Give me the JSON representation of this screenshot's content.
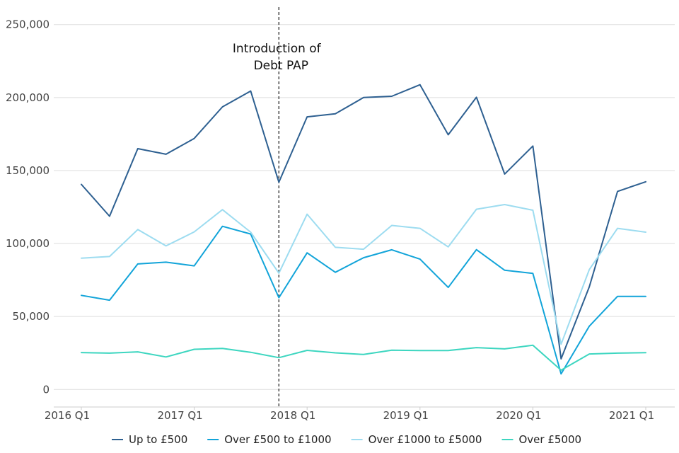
{
  "chart_data": {
    "type": "line",
    "title": "",
    "xlabel": "",
    "ylabel": "",
    "ylim": [
      -12000,
      262000
    ],
    "yticks": [
      0,
      50000,
      100000,
      150000,
      200000,
      250000
    ],
    "ytick_labels": [
      "0",
      "50,000",
      "100,000",
      "150,000",
      "200,000",
      "250,000"
    ],
    "x_tick_index": [
      0,
      4,
      8,
      12,
      16,
      20
    ],
    "x_tick_labels": [
      "2016 Q1",
      "2017 Q1",
      "2018 Q1",
      "2019 Q1",
      "2020 Q1",
      "2021 Q1"
    ],
    "x_count": 21,
    "legend_position": "bottom",
    "grid": true,
    "annotation": {
      "at_index": 7,
      "line1": "Introduction of",
      "line2": "Debt PAP"
    },
    "series": [
      {
        "name": "Up to £500",
        "color": "#2e6091",
        "values": [
          140500,
          118700,
          165000,
          161200,
          172000,
          193600,
          204500,
          142000,
          186800,
          188900,
          200000,
          200900,
          208800,
          174500,
          200200,
          147600,
          166800,
          21000,
          70400,
          135700,
          142300
        ]
      },
      {
        "name": "Over £500 to £1000",
        "color": "#12a4d9",
        "values": [
          64500,
          61200,
          86000,
          87200,
          84700,
          111800,
          106500,
          62900,
          93600,
          80300,
          90300,
          95700,
          89300,
          69900,
          95800,
          81700,
          79500,
          10700,
          43400,
          63800,
          63800
        ]
      },
      {
        "name": "Over £1000 to £5000",
        "color": "#9ddcf0",
        "values": [
          90000,
          91100,
          109600,
          98400,
          108000,
          123200,
          107800,
          79700,
          120100,
          97400,
          96100,
          112400,
          110400,
          97700,
          123500,
          126700,
          122800,
          31000,
          82200,
          110400,
          107800
        ]
      },
      {
        "name": "Over £5000",
        "color": "#3dd6c0",
        "values": [
          25300,
          24900,
          25800,
          22300,
          27500,
          28100,
          25500,
          21800,
          26800,
          25100,
          24000,
          26900,
          26700,
          26700,
          28700,
          27800,
          30300,
          13200,
          24300,
          24900,
          25200
        ]
      }
    ]
  }
}
